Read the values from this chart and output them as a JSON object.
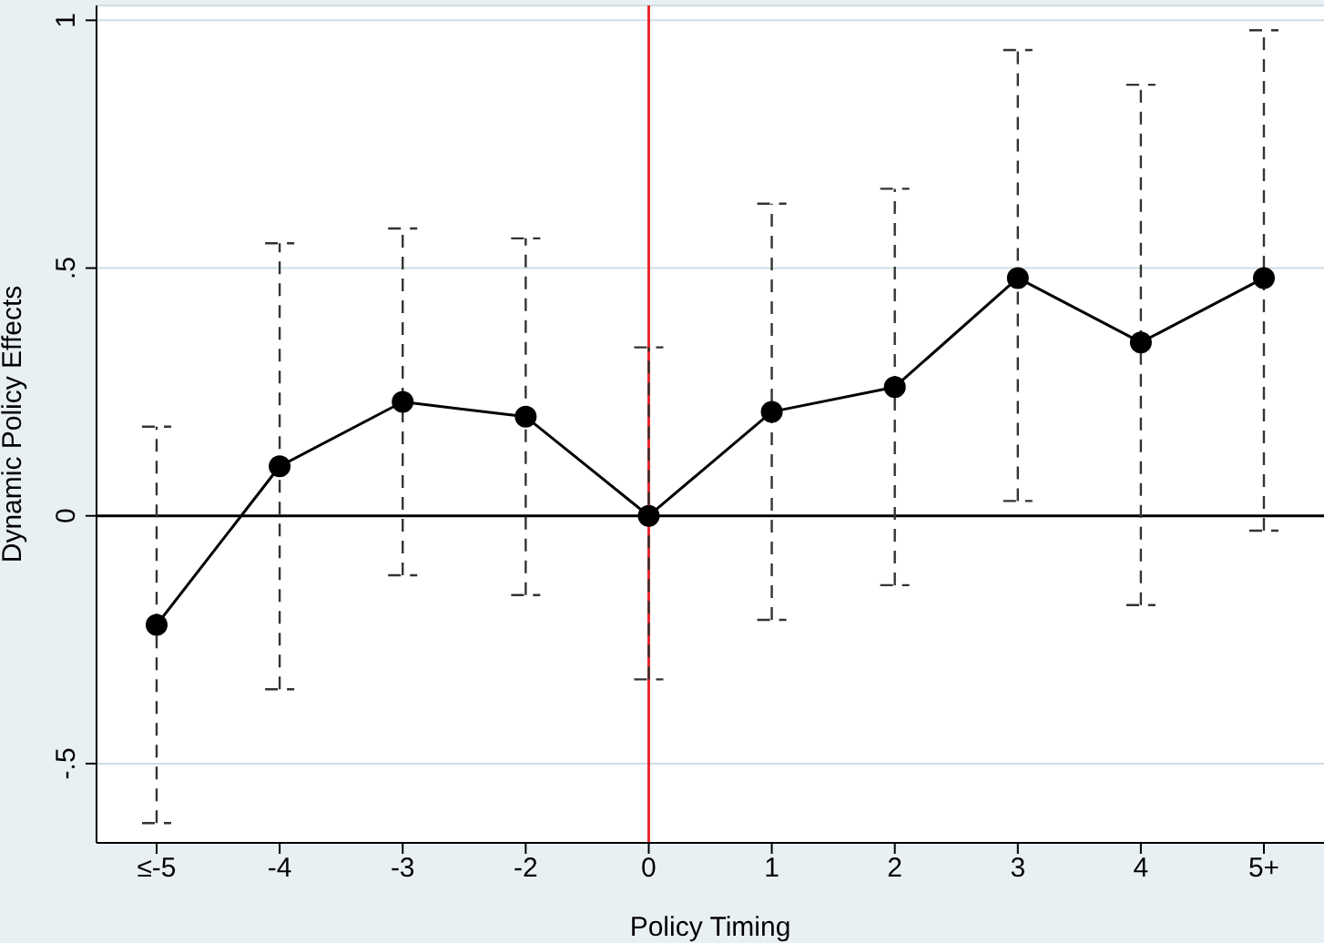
{
  "chart_data": {
    "type": "line",
    "xlabel": "Policy Timing",
    "ylabel": "Dynamic Policy Effects",
    "categories": [
      "≤-5",
      "-4",
      "-3",
      "-2",
      "0",
      "1",
      "2",
      "3",
      "4",
      "5+"
    ],
    "series": [
      {
        "color": "#000000",
        "values": [
          -0.22,
          0.1,
          0.23,
          0.2,
          0.0,
          0.21,
          0.26,
          0.48,
          0.35,
          0.48
        ],
        "errors": [
          [
            -0.62,
            0.18
          ],
          [
            -0.35,
            0.55
          ],
          [
            -0.12,
            0.58
          ],
          [
            -0.16,
            0.56
          ],
          [
            -0.33,
            0.34
          ],
          [
            -0.21,
            0.63
          ],
          [
            -0.14,
            0.66
          ],
          [
            0.03,
            0.94
          ],
          [
            -0.18,
            0.87
          ],
          [
            -0.03,
            0.98
          ]
        ]
      }
    ],
    "ylim": [
      -0.66,
      1.03
    ],
    "yticks": [
      {
        "value": -0.5,
        "label": "-.5"
      },
      0,
      {
        "value": 0.5,
        "label": ".5"
      },
      1
    ],
    "ref_lines": [
      {
        "axis": "y",
        "value": 0,
        "color": "#000000"
      },
      {
        "axis": "x",
        "value": "0",
        "color": "#e8262b"
      }
    ],
    "grid": "y",
    "marker": "circle",
    "line_style": "solid"
  }
}
